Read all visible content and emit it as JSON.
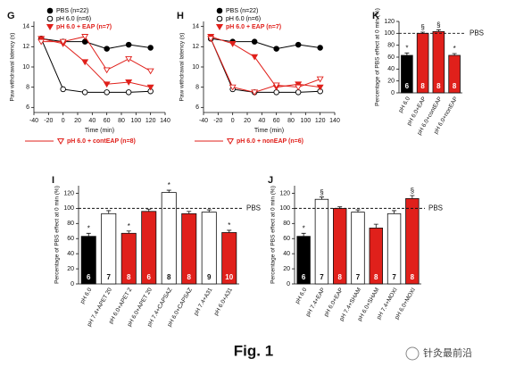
{
  "chart_data": [
    {
      "type": "line",
      "label": "G",
      "ylabel": "Paw withdrawal latency (s)",
      "xlabel": "Time (min)",
      "xlim": [
        -40,
        140
      ],
      "xticks": [
        -40,
        -20,
        0,
        20,
        40,
        60,
        80,
        100,
        120,
        140
      ],
      "ylim": [
        5.5,
        14.5
      ],
      "yticks": [
        6,
        8,
        10,
        12,
        14
      ],
      "x": [
        -30,
        0,
        30,
        60,
        90,
        120
      ],
      "series": [
        {
          "name": "PBS (n=22)",
          "color": "#000000",
          "fill": "#000000",
          "marker": "circle",
          "values": [
            12.8,
            12.5,
            12.5,
            11.8,
            12.2,
            11.9
          ]
        },
        {
          "name": "pH 6.0 (n=6)",
          "color": "#000000",
          "fill": "#ffffff",
          "marker": "circle",
          "values": [
            12.8,
            7.8,
            7.5,
            7.5,
            7.5,
            7.6
          ]
        },
        {
          "name": "pH 6.0 + EAP (n=7)",
          "color": "#e0201b",
          "fill": "#e0201b",
          "marker": "triangle",
          "values": [
            12.8,
            12.3,
            10.5,
            8.3,
            8.5,
            8.0
          ]
        },
        {
          "name": "pH 6.0 + contEAP (n=8)",
          "color": "#e0201b",
          "fill": "#ffffff",
          "marker": "triangle",
          "values": [
            12.5,
            12.5,
            13.0,
            9.7,
            10.8,
            9.6
          ]
        }
      ]
    },
    {
      "type": "line",
      "label": "H",
      "ylabel": "Paw withdrawal latency (s)",
      "xlabel": "Time (min)",
      "xlim": [
        -40,
        140
      ],
      "xticks": [
        -40,
        -20,
        0,
        20,
        40,
        60,
        80,
        100,
        120,
        140
      ],
      "ylim": [
        5.5,
        14.5
      ],
      "yticks": [
        6,
        8,
        10,
        12,
        14
      ],
      "x": [
        -30,
        0,
        30,
        60,
        90,
        120
      ],
      "series": [
        {
          "name": "PBS (n=22)",
          "color": "#000000",
          "fill": "#000000",
          "marker": "circle",
          "values": [
            12.8,
            12.5,
            12.5,
            11.8,
            12.2,
            11.9
          ]
        },
        {
          "name": "pH 6.0 (n=6)",
          "color": "#000000",
          "fill": "#ffffff",
          "marker": "circle",
          "values": [
            12.8,
            7.8,
            7.5,
            7.5,
            7.5,
            7.6
          ]
        },
        {
          "name": "pH 6.0 + EAP (n=7)",
          "color": "#e0201b",
          "fill": "#e0201b",
          "marker": "triangle",
          "values": [
            13.0,
            12.3,
            11.0,
            8.0,
            8.3,
            8.0
          ]
        },
        {
          "name": "pH 6.0 + nonEAP (n=6)",
          "color": "#e0201b",
          "fill": "#ffffff",
          "marker": "triangle",
          "values": [
            12.8,
            8.0,
            7.5,
            8.2,
            8.0,
            8.8
          ]
        }
      ]
    },
    {
      "type": "bar",
      "label": "K",
      "ylabel": "Percentage of PBS effect at 0 min (%)",
      "ylim": [
        0,
        120
      ],
      "yticks": [
        0,
        20,
        40,
        60,
        80,
        100,
        120
      ],
      "reference": {
        "value": 100,
        "label": "PBS"
      },
      "categories": [
        "pH 6.0",
        "pH 6.0+EAP",
        "pH 6.0+contEAP",
        "pH 6.0+nonEAP"
      ],
      "values": [
        63,
        100,
        103,
        63
      ],
      "errors": [
        4,
        2,
        3,
        3
      ],
      "colors": [
        "#000000",
        "#e0201b",
        "#e0201b",
        "#e0201b"
      ],
      "n": [
        6,
        8,
        8,
        8
      ],
      "annotations": [
        "*",
        "§",
        "§",
        "*"
      ]
    },
    {
      "type": "bar",
      "label": "I",
      "ylabel": "Percentage of PBS effect at 0 min (%)",
      "ylim": [
        0,
        130
      ],
      "yticks": [
        0,
        20,
        40,
        60,
        80,
        100,
        120
      ],
      "reference": {
        "value": 100,
        "label": "PBS"
      },
      "categories": [
        "pH 6.0",
        "pH 7.4+APET 20",
        "pH 6.0+APET 2",
        "pH 6.0+APET 20",
        "pH 7.4+CAPSAZ",
        "pH 6.0+CAPSAZ",
        "pH 7.4+A31",
        "pH 6.0+A31"
      ],
      "values": [
        63,
        93,
        67,
        96,
        121,
        93,
        95,
        68
      ],
      "errors": [
        4,
        4,
        3,
        3,
        3,
        3,
        3,
        3
      ],
      "colors": [
        "#000000",
        "#ffffff",
        "#e0201b",
        "#e0201b",
        "#ffffff",
        "#e0201b",
        "#ffffff",
        "#e0201b"
      ],
      "n": [
        6,
        7,
        8,
        6,
        8,
        8,
        9,
        10
      ],
      "annotations": [
        "*",
        null,
        "*",
        null,
        "*",
        null,
        null,
        "*"
      ]
    },
    {
      "type": "bar",
      "label": "J",
      "ylabel": "Percentage of PBS effect at 0 min (%)",
      "ylim": [
        0,
        130
      ],
      "yticks": [
        0,
        20,
        40,
        60,
        80,
        100,
        120
      ],
      "reference": {
        "value": 100,
        "label": "PBS"
      },
      "categories": [
        "pH 6.0",
        "pH 7.4+EAP",
        "pH 6.0+EAP",
        "pH 7.4+SHAM",
        "pH 6.0+SHAM",
        "pH 7.4+MOXI",
        "pH 6.0+MOXI"
      ],
      "values": [
        63,
        112,
        100,
        95,
        74,
        93,
        113
      ],
      "errors": [
        4,
        3,
        2,
        3,
        5,
        4,
        4
      ],
      "colors": [
        "#000000",
        "#ffffff",
        "#e0201b",
        "#ffffff",
        "#e0201b",
        "#ffffff",
        "#e0201b"
      ],
      "n": [
        6,
        7,
        8,
        7,
        8,
        7,
        8
      ],
      "annotations": [
        "*",
        "§",
        null,
        null,
        null,
        null,
        "§"
      ]
    }
  ],
  "footer": "Fig. 1",
  "watermark": "针灸最前沿"
}
